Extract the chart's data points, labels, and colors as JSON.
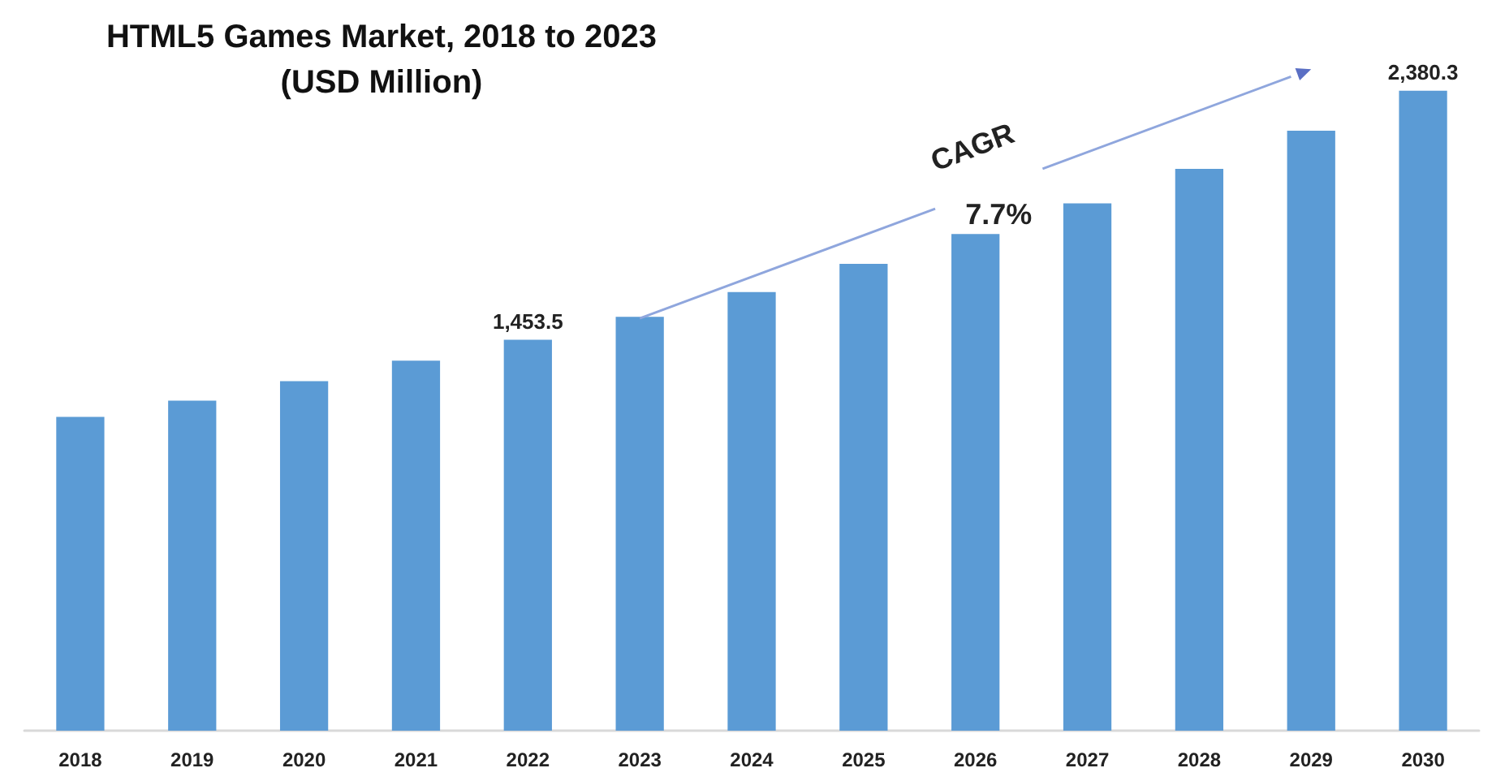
{
  "chart_data": {
    "type": "bar",
    "title": "HTML5 Games Market, 2018 to 2023",
    "subtitle": "(USD Million)",
    "categories": [
      "2018",
      "2019",
      "2020",
      "2021",
      "2022",
      "2023",
      "2024",
      "2025",
      "2026",
      "2027",
      "2028",
      "2029",
      "2030"
    ],
    "values": [
      1167,
      1227,
      1300,
      1376,
      1453.5,
      1539,
      1631,
      1736,
      1847,
      1961,
      2089,
      2231,
      2380.3
    ],
    "value_labels": [
      null,
      null,
      null,
      null,
      "1,453.5",
      null,
      null,
      null,
      null,
      null,
      null,
      null,
      "2,380.3"
    ],
    "color": "#5b9bd5",
    "tick_labels": "x",
    "grid": false,
    "annotations": [
      "CAGR",
      "7.7%"
    ]
  }
}
